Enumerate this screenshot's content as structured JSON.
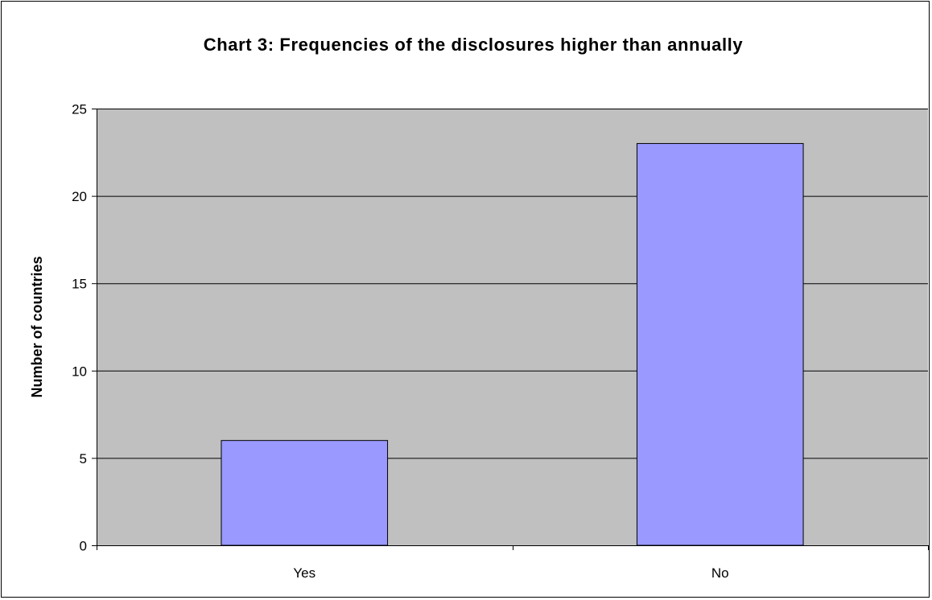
{
  "chart_data": {
    "type": "bar",
    "title": "Chart 3: Frequencies of the disclosures higher than annually",
    "xlabel": "",
    "ylabel": "Number of countries",
    "categories": [
      "Yes",
      "No"
    ],
    "values": [
      6,
      23
    ],
    "ylim": [
      0,
      25
    ],
    "yticks": [
      0,
      5,
      10,
      15,
      20,
      25
    ],
    "grid": true,
    "legend": "none",
    "colors": {
      "bar_fill": "#9999ff",
      "bar_stroke": "#000000",
      "plot_background": "#c0c0c0",
      "gridline": "#000000"
    }
  }
}
